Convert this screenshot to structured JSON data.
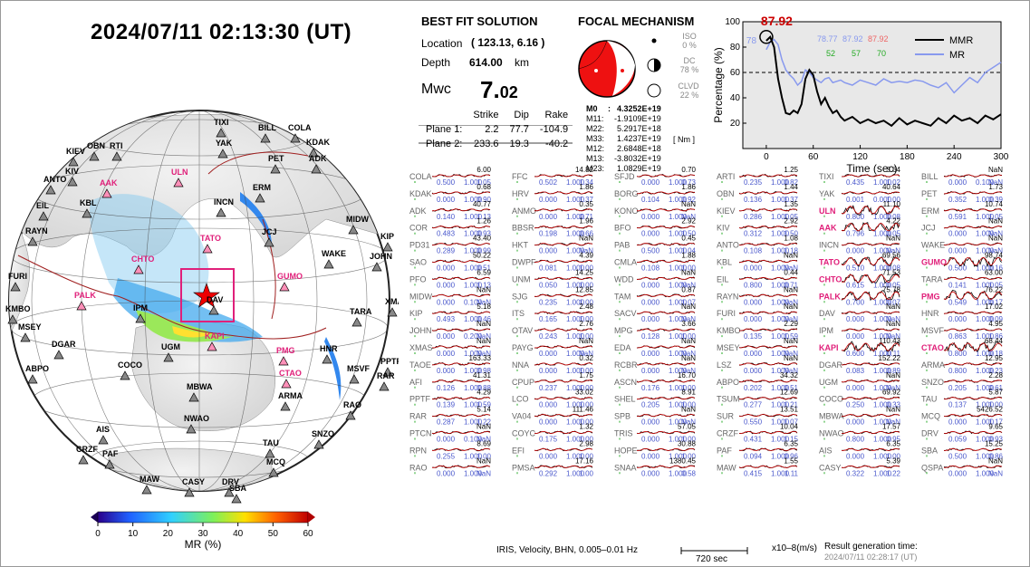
{
  "header": {
    "datetime": "2024/07/11  02:13:30 (UT)"
  },
  "best_fit": {
    "title": "BEST FIT SOLUTION",
    "location_label": "Location",
    "location_value": "( 123.13,  6.16 )",
    "depth_label": "Depth",
    "depth_value": "614.00",
    "depth_unit": "km",
    "mw_label": "Mwc",
    "mw_int": "7.",
    "mw_frac": "02",
    "planes_header": [
      "",
      "Strike",
      "Dip",
      "Rake"
    ],
    "planes": [
      [
        "Plane 1:",
        "2.2",
        "77.7",
        "-104.9"
      ],
      [
        "Plane 2:",
        "233.6",
        "19.3",
        "-40.2"
      ]
    ]
  },
  "focal": {
    "title": "FOCAL MECHANISM",
    "iso_label": "ISO",
    "iso_value": "0 %",
    "dc_label": "DC",
    "dc_value": "78 %",
    "clvd_label": "CLVD",
    "clvd_value": "22 %",
    "tensor": [
      [
        "M0",
        ":",
        "4.3252E+19"
      ],
      [
        "M11:",
        "",
        "-1.9109E+19"
      ],
      [
        "M22:",
        "",
        "5.2917E+18"
      ],
      [
        "M33:",
        "",
        "1.4237E+19"
      ],
      [
        "M12:",
        "",
        "2.6848E+18"
      ],
      [
        "M13:",
        "",
        "-3.8032E+19"
      ],
      [
        "M23:",
        "",
        "1.0829E+19"
      ]
    ],
    "unit": "[ Nm ]"
  },
  "colors": {
    "beachball": "#ee1111",
    "mmr": "#000000",
    "mr": "#8899ee",
    "highlight": "#e0207a",
    "red": "#cc0000"
  },
  "chart_data": {
    "type": "line",
    "xlabel": "Time (sec)",
    "ylabel": "Percentage (%)",
    "xlim": [
      -30,
      300
    ],
    "ylim": [
      0,
      100
    ],
    "xticks": [
      0,
      60,
      120,
      180,
      240,
      300
    ],
    "yticks": [
      20,
      40,
      60,
      80,
      100
    ],
    "threshold": 60,
    "peak_label": "87.92",
    "peak_small_label": "78",
    "annotations_top": [
      "78.77",
      "87.92",
      "87.92"
    ],
    "annotations_bottom": [
      "52",
      "57",
      "70"
    ],
    "series": [
      {
        "name": "MMR",
        "x": [
          0,
          5,
          10,
          15,
          20,
          25,
          30,
          35,
          40,
          45,
          50,
          55,
          60,
          65,
          70,
          75,
          80,
          85,
          90,
          95,
          100,
          110,
          120,
          130,
          140,
          150,
          160,
          170,
          180,
          190,
          200,
          210,
          220,
          230,
          240,
          250,
          260,
          270,
          280,
          290,
          300
        ],
        "values": [
          85,
          88,
          80,
          55,
          40,
          28,
          27,
          30,
          28,
          35,
          55,
          62,
          58,
          45,
          35,
          40,
          33,
          28,
          30,
          25,
          22,
          25,
          20,
          23,
          20,
          22,
          18,
          24,
          19,
          22,
          20,
          18,
          24,
          20,
          26,
          22,
          24,
          20,
          26,
          23,
          27
        ]
      },
      {
        "name": "MR",
        "x": [
          0,
          5,
          10,
          15,
          20,
          25,
          30,
          35,
          40,
          45,
          50,
          55,
          60,
          65,
          70,
          75,
          80,
          85,
          90,
          95,
          100,
          110,
          120,
          130,
          140,
          150,
          160,
          170,
          180,
          190,
          200,
          210,
          220,
          230,
          240,
          250,
          260,
          270,
          280,
          290,
          300
        ],
        "values": [
          78,
          84,
          86,
          82,
          70,
          62,
          58,
          55,
          50,
          53,
          62,
          60,
          56,
          54,
          52,
          55,
          56,
          52,
          53,
          54,
          52,
          50,
          54,
          52,
          50,
          55,
          52,
          53,
          52,
          54,
          53,
          50,
          48,
          52,
          44,
          50,
          56,
          52,
          60,
          64,
          68
        ]
      }
    ],
    "colorbar": {
      "title": "MR (%)",
      "ticks": [
        "0",
        "10",
        "20",
        "30",
        "40",
        "50",
        "60"
      ]
    }
  },
  "stations": [
    [
      "COLA",
      "6.00",
      "0.500",
      "1.000",
      "1.05"
    ],
    [
      "FFC",
      "14.82",
      "0.502",
      "1.000",
      "1.34"
    ],
    [
      "SFJD",
      "0.70",
      "0.000",
      "1.000",
      "0.73"
    ],
    [
      "ARTI",
      "1.25",
      "0.235",
      "1.000",
      "0.82"
    ],
    [
      "TIXI",
      "3.64",
      "0.435",
      "1.000",
      "1.02"
    ],
    [
      "BILL",
      "NaN",
      "0.000",
      "0.100",
      "NaN"
    ],
    [
      "KDAK",
      "0.68",
      "0.000",
      "1.000",
      "0.90"
    ],
    [
      "HRV",
      "1.86",
      "0.000",
      "1.000",
      "1.37"
    ],
    [
      "BORG",
      "1.86",
      "0.104",
      "1.000",
      "0.92"
    ],
    [
      "OBN",
      "1.44",
      "0.136",
      "1.000",
      "1.37"
    ],
    [
      "YAK",
      "40.64",
      "0.001",
      "0.000",
      "1.00"
    ],
    [
      "PET",
      "1.73",
      "0.352",
      "1.000",
      "0.39"
    ],
    [
      "ADK",
      "40.77",
      "0.140",
      "1.000",
      "1.13"
    ],
    [
      "ANMO",
      "0.35",
      "0.000",
      "1.000",
      "0.71"
    ],
    [
      "KONO",
      "NaN",
      "0.000",
      "1.000",
      "NaN"
    ],
    [
      "KIEV",
      "1.35",
      "0.286",
      "1.000",
      "1.05"
    ],
    [
      "ULN",
      "11.10",
      "0.800",
      "1.000",
      "0.08"
    ],
    [
      "ERM",
      "10.74",
      "0.591",
      "1.000",
      "1.05"
    ],
    [
      "COR",
      "1.26",
      "0.483",
      "1.000",
      "0.93"
    ],
    [
      "BBSR",
      "1.96",
      "0.198",
      "1.000",
      "0.66"
    ],
    [
      "BFO",
      "2.92",
      "0.000",
      "1.000",
      "1.50"
    ],
    [
      "KIV",
      "2.92",
      "0.312",
      "1.000",
      "1.50"
    ],
    [
      "AAK",
      "4.22",
      "0.796",
      "1.000",
      "0.05"
    ],
    [
      "JCJ",
      "NaN",
      "0.000",
      "1.000",
      "NaN"
    ],
    [
      "PD31",
      "43.40",
      "0.289",
      "1.000",
      "0.99"
    ],
    [
      "HKT",
      "NaN",
      "0.000",
      "1.000",
      "NaN"
    ],
    [
      "PAB",
      "0.45",
      "0.500",
      "1.000",
      "1.04"
    ],
    [
      "ANTO",
      "1.08",
      "0.108",
      "1.000",
      "1.18"
    ],
    [
      "INCN",
      "NaN",
      "0.000",
      "1.000",
      "NaN"
    ],
    [
      "WAKE",
      "NaN",
      "0.000",
      "1.000",
      "NaN"
    ],
    [
      "SAO",
      "50.22",
      "0.000",
      "1.000",
      "0.51"
    ],
    [
      "DWPF",
      "4.39",
      "0.081",
      "1.000",
      "1.00"
    ],
    [
      "CMLA",
      "1.88",
      "0.108",
      "1.000",
      "1.00"
    ],
    [
      "KBL",
      "NaN",
      "0.000",
      "1.000",
      "NaN"
    ],
    [
      "TATO",
      "69.56",
      "0.510",
      "1.000",
      "0.08"
    ],
    [
      "GUMO",
      "98.74",
      "0.500",
      "1.000",
      "0.16"
    ],
    [
      "PFO",
      "6.59",
      "0.000",
      "1.000",
      "1.13"
    ],
    [
      "UNM",
      "14.25",
      "0.050",
      "1.000",
      "1.00"
    ],
    [
      "WDD",
      "NaN",
      "0.000",
      "1.000",
      "NaN"
    ],
    [
      "EIL",
      "0.44",
      "0.800",
      "1.000",
      "0.71"
    ],
    [
      "CHTO",
      "71.53",
      "0.615",
      "1.000",
      "0.05"
    ],
    [
      "TARA",
      "63.00",
      "0.141",
      "1.000",
      "1.05"
    ],
    [
      "MIDW",
      "NaN",
      "0.000",
      "0.100",
      "NaN"
    ],
    [
      "SJG",
      "12.85",
      "0.235",
      "1.000",
      "1.00"
    ],
    [
      "TAM",
      "0.87",
      "0.000",
      "1.000",
      "1.07"
    ],
    [
      "RAYN",
      "NaN",
      "0.000",
      "1.000",
      "NaN"
    ],
    [
      "PALK",
      "75.78",
      "0.700",
      "1.000",
      "0.07"
    ],
    [
      "PMG",
      "76.22",
      "0.549",
      "1.000",
      "0.17"
    ],
    [
      "KIP",
      "5.18",
      "0.493",
      "1.000",
      "0.46"
    ],
    [
      "ITS",
      "2.48",
      "0.165",
      "1.000",
      "1.00"
    ],
    [
      "SACV",
      "NaN",
      "0.000",
      "1.000",
      "NaN"
    ],
    [
      "FURI",
      "NaN",
      "0.000",
      "1.000",
      "NaN"
    ],
    [
      "DAV",
      "NaN",
      "0.000",
      "1.000",
      "NaN"
    ],
    [
      "HNR",
      "17.02",
      "0.000",
      "1.000",
      "0.09"
    ],
    [
      "JOHN",
      "NaN",
      "0.000",
      "0.200",
      "NaN"
    ],
    [
      "OTAV",
      "2.76",
      "0.243",
      "1.000",
      "1.00"
    ],
    [
      "MPG",
      "3.66",
      "0.128",
      "1.000",
      "1.00"
    ],
    [
      "KMBO",
      "2.29",
      "0.135",
      "1.000",
      "1.59"
    ],
    [
      "IPM",
      "NaN",
      "0.000",
      "1.000",
      "NaN"
    ],
    [
      "MSVF",
      "4.95",
      "0.863",
      "1.000",
      "1.86"
    ],
    [
      "XMAS",
      "NaN",
      "0.000",
      "1.000",
      "NaN"
    ],
    [
      "PAYG",
      "NaN",
      "0.000",
      "1.000",
      "NaN"
    ],
    [
      "EDA",
      "NaN",
      "0.000",
      "1.000",
      "NaN"
    ],
    [
      "MSEY",
      "NaN",
      "0.000",
      "1.000",
      "NaN"
    ],
    [
      "KAPI",
      "110.43",
      "0.600",
      "1.000",
      "0.11"
    ],
    [
      "CTAO",
      "68.44",
      "0.800",
      "1.000",
      "0.18"
    ],
    [
      "TAOE",
      "163.33",
      "0.000",
      "1.000",
      "0.98"
    ],
    [
      "NNA",
      "0.32",
      "0.000",
      "1.000",
      "1.00"
    ],
    [
      "RCBR",
      "NaN",
      "0.000",
      "1.000",
      "NaN"
    ],
    [
      "LSZ",
      "NaN",
      "0.000",
      "1.000",
      "NaN"
    ],
    [
      "DGAR",
      "152.22",
      "0.083",
      "1.000",
      "0.89"
    ],
    [
      "ARMA",
      "12.95",
      "0.800",
      "1.000",
      "0.23"
    ],
    [
      "AFI",
      "41.31",
      "0.126",
      "1.000",
      "0.88"
    ],
    [
      "CPUP",
      "1.75",
      "0.237",
      "1.000",
      "1.00"
    ],
    [
      "ASCN",
      "16.70",
      "0.176",
      "1.000",
      "1.00"
    ],
    [
      "ABPO",
      "34.32",
      "0.202",
      "1.000",
      "0.51"
    ],
    [
      "UGM",
      "NaN",
      "0.000",
      "1.000",
      "NaN"
    ],
    [
      "SNZO",
      "2.28",
      "0.205",
      "1.000",
      "0.61"
    ],
    [
      "PPTF",
      "4.29",
      "0.139",
      "1.000",
      "1.59"
    ],
    [
      "LCO",
      "33.02",
      "0.000",
      "1.000",
      "1.00"
    ],
    [
      "SHEL",
      "8.91",
      "0.205",
      "1.000",
      "1.00"
    ],
    [
      "TSUM",
      "12.69",
      "0.277",
      "1.000",
      "1.21"
    ],
    [
      "COCO",
      "69.92",
      "0.250",
      "1.000",
      "0.33"
    ],
    [
      "TAU",
      "5.87",
      "0.137",
      "1.000",
      "1.00"
    ],
    [
      "RAR",
      "5.14",
      "0.287",
      "1.000",
      "1.22"
    ],
    [
      "VA04",
      "111.46",
      "0.000",
      "1.000",
      "1.00"
    ],
    [
      "SPB",
      "NaN",
      "0.000",
      "1.000",
      "NaN"
    ],
    [
      "SUR",
      "13.51",
      "0.550",
      "1.000",
      "1.07"
    ],
    [
      "MBWA",
      "NaN",
      "0.000",
      "1.000",
      "NaN"
    ],
    [
      "MCQ",
      "5426.52",
      "0.000",
      "1.000",
      "1.17"
    ],
    [
      "PTCN",
      "NaN",
      "0.000",
      "0.100",
      "NaN"
    ],
    [
      "COYC",
      "1.32",
      "0.175",
      "1.000",
      "1.00"
    ],
    [
      "TRIS",
      "57.05",
      "0.000",
      "1.000",
      "1.00"
    ],
    [
      "CRZF",
      "10.04",
      "0.431",
      "1.000",
      "1.15"
    ],
    [
      "NWAO",
      "17.57",
      "0.800",
      "1.000",
      "0.95"
    ],
    [
      "DRV",
      "9.65",
      "0.059",
      "1.000",
      "0.93"
    ],
    [
      "RPN",
      "8.69",
      "0.255",
      "1.000",
      "1.00"
    ],
    [
      "EFI",
      "2.98",
      "0.000",
      "1.000",
      "1.00"
    ],
    [
      "HOPE",
      "30.88",
      "0.000",
      "1.000",
      "1.00"
    ],
    [
      "PAF",
      "6.35",
      "0.094",
      "1.000",
      "0.96"
    ],
    [
      "AIS",
      "6.35",
      "0.000",
      "1.000",
      "1.00"
    ],
    [
      "SBA",
      "15.25",
      "0.500",
      "1.000",
      "0.86"
    ],
    [
      "RAO",
      "NaN",
      "0.000",
      "1.000",
      "NaN"
    ],
    [
      "PMSA",
      "17.16",
      "0.292",
      "1.000",
      "1.00"
    ],
    [
      "SNAA",
      "1380.45",
      "0.000",
      "1.000",
      "0.58"
    ],
    [
      "MAW",
      "1.55",
      "0.415",
      "1.000",
      "1.11"
    ],
    [
      "CASY",
      "5.39",
      "0.322",
      "1.000",
      "1.22"
    ],
    [
      "QSPA",
      "NaN",
      "0.000",
      "1.000",
      "NaN"
    ]
  ],
  "highlight_stations": [
    "ULN",
    "AAK",
    "TATO",
    "GUMO",
    "CHTO",
    "PALK",
    "PMG",
    "KAPI",
    "CTAO"
  ],
  "map": {
    "labels": [
      [
        "TIXI",
        236,
        8
      ],
      [
        "BILL",
        285,
        14
      ],
      [
        "COLA",
        318,
        14
      ],
      [
        "YAK",
        238,
        31
      ],
      [
        "KDAK",
        338,
        30
      ],
      [
        "OBN",
        96,
        34
      ],
      [
        "RTI",
        121,
        34
      ],
      [
        "KIEV",
        73,
        40
      ],
      [
        "PET",
        296,
        48
      ],
      [
        "ADK",
        341,
        48
      ],
      [
        "KIV",
        72,
        62
      ],
      [
        "ULN",
        189,
        63
      ],
      [
        "AAK",
        110,
        75
      ],
      [
        "ANTO",
        48,
        71
      ],
      [
        "ERM",
        279,
        80
      ],
      [
        "KBL",
        88,
        97
      ],
      [
        "INCN",
        236,
        96
      ],
      [
        "EIL",
        40,
        100
      ],
      [
        "MIDW",
        382,
        115
      ],
      [
        "JCJ",
        289,
        129
      ],
      [
        "TATO",
        221,
        136
      ],
      [
        "RAYN",
        28,
        128
      ],
      [
        "KIP",
        420,
        134
      ],
      [
        "JOHN",
        408,
        156
      ],
      [
        "WAKE",
        355,
        153
      ],
      [
        "CHTO",
        145,
        159
      ],
      [
        "GUMO",
        306,
        178
      ],
      [
        "FURI",
        9,
        178
      ],
      [
        "PALK",
        82,
        199
      ],
      [
        "XMAS",
        425,
        206
      ],
      [
        "KMBO",
        6,
        214
      ],
      [
        "DAV",
        228,
        204
      ],
      [
        "IPM",
        147,
        213
      ],
      [
        "TARA",
        386,
        217
      ],
      [
        "MSEY",
        20,
        234
      ],
      [
        "KAPI",
        226,
        244
      ],
      [
        "DGAR",
        57,
        253
      ],
      [
        "UGM",
        178,
        256
      ],
      [
        "PMG",
        305,
        260
      ],
      [
        "HNR",
        353,
        258
      ],
      [
        "PPTF",
        420,
        272
      ],
      [
        "ABPO",
        28,
        280
      ],
      [
        "COCO",
        130,
        276
      ],
      [
        "MSVF",
        383,
        280
      ],
      [
        "RAR",
        416,
        288
      ],
      [
        "CTAO",
        308,
        285
      ],
      [
        "MBWA",
        206,
        300
      ],
      [
        "ARMA",
        307,
        310
      ],
      [
        "NWAO",
        203,
        335
      ],
      [
        "RAO",
        379,
        320
      ],
      [
        "SNZO",
        344,
        352
      ],
      [
        "AIS",
        106,
        347
      ],
      [
        "TAU",
        290,
        362
      ],
      [
        "CRZF",
        84,
        369
      ],
      [
        "PAF",
        113,
        374
      ],
      [
        "MCQ",
        294,
        383
      ],
      [
        "MAW",
        154,
        402
      ],
      [
        "CASY",
        201,
        405
      ],
      [
        "DRV",
        245,
        405
      ],
      [
        "SBA",
        253,
        412
      ]
    ]
  },
  "footer": {
    "filter": "IRIS, Velocity,   BHN, 0.005–0.01 Hz",
    "scale": "720 sec",
    "unit": "x10–8(m/s)",
    "result_label": "Result generation time:",
    "result_time": "2024/07/11 02:28:17 (UT)"
  }
}
